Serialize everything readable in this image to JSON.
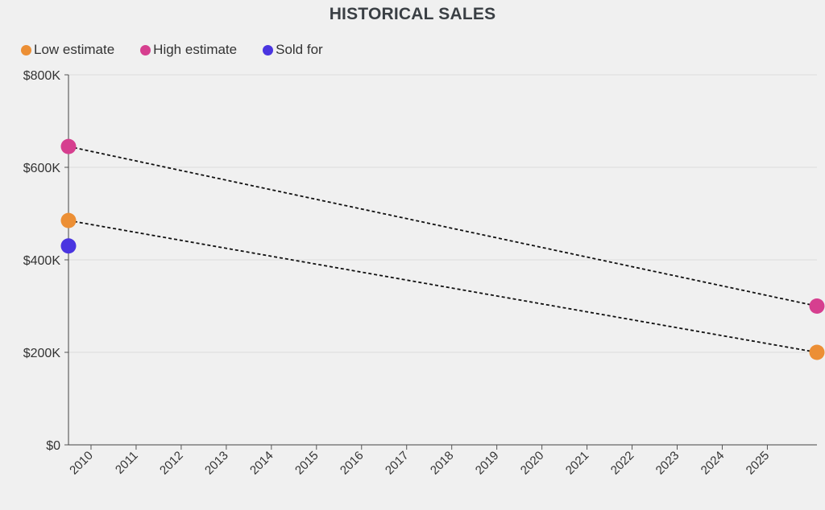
{
  "chart_data": {
    "type": "scatter",
    "title": "HISTORICAL SALES",
    "xlabel": "",
    "ylabel": "",
    "ylim": [
      0,
      800000
    ],
    "y_ticks": [
      0,
      200000,
      400000,
      600000,
      800000
    ],
    "y_tick_labels": [
      "$0",
      "$200K",
      "$400K",
      "$600K",
      "$800K"
    ],
    "x_range": [
      2009.5,
      2026.1
    ],
    "x_ticks": [
      2010,
      2011,
      2012,
      2013,
      2014,
      2015,
      2016,
      2017,
      2018,
      2019,
      2020,
      2021,
      2022,
      2023,
      2024,
      2025
    ],
    "x_tick_labels": [
      "2010",
      "2011",
      "2012",
      "2013",
      "2014",
      "2015",
      "2016",
      "2017",
      "2018",
      "2019",
      "2020",
      "2021",
      "2022",
      "2023",
      "2024",
      "2025"
    ],
    "grid": true,
    "legend_position": "top-left",
    "series": [
      {
        "name": "Low estimate",
        "color": "#ec8f35",
        "connect": true,
        "points": [
          {
            "x": 2009.5,
            "y": 485000
          },
          {
            "x": 2026.1,
            "y": 200000
          }
        ]
      },
      {
        "name": "High estimate",
        "color": "#d63f8f",
        "connect": true,
        "points": [
          {
            "x": 2009.5,
            "y": 645000
          },
          {
            "x": 2026.1,
            "y": 300000
          }
        ]
      },
      {
        "name": "Sold for",
        "color": "#4a35e0",
        "connect": false,
        "points": [
          {
            "x": 2009.5,
            "y": 430000
          }
        ]
      }
    ]
  }
}
